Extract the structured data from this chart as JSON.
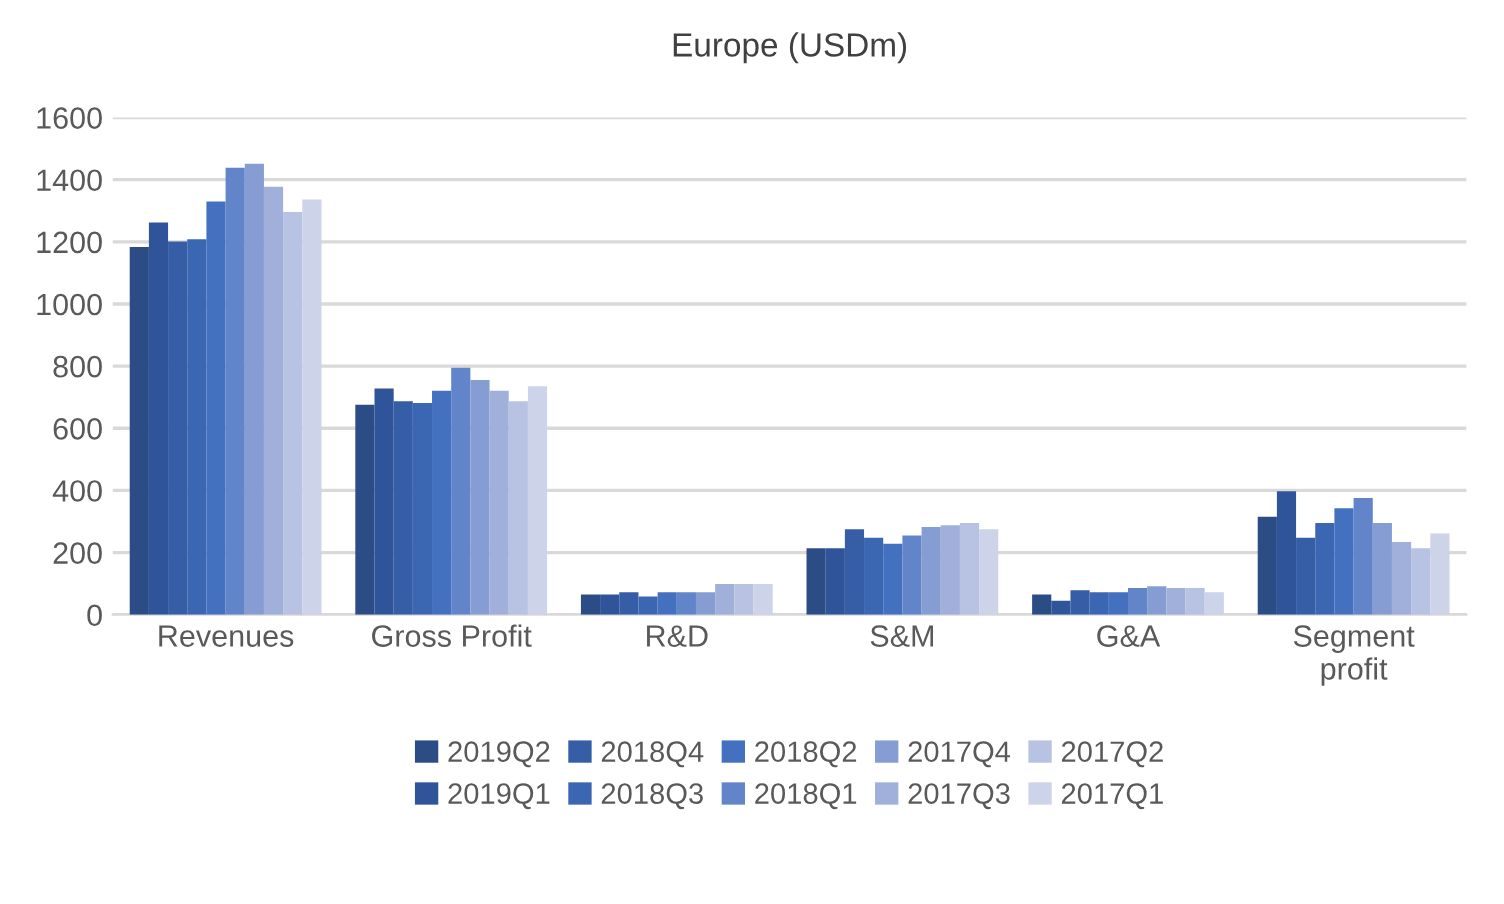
{
  "chart_data": {
    "type": "bar",
    "title": "Europe (USDm)",
    "categories": [
      "Revenues",
      "Gross Profit",
      "R&D",
      "S&M",
      "G&A",
      "Segment\nprofit"
    ],
    "ylim": [
      0,
      1600
    ],
    "yticks": [
      0,
      200,
      400,
      600,
      800,
      1000,
      1200,
      1400,
      1600
    ],
    "grid": "y",
    "legend": "bottom",
    "series": [
      {
        "name": "2019Q2",
        "color": "#2c4c86",
        "values": [
          1183,
          676,
          65,
          214,
          65,
          315
        ]
      },
      {
        "name": "2019Q1",
        "color": "#30549a",
        "values": [
          1262,
          728,
          65,
          214,
          45,
          397
        ]
      },
      {
        "name": "2018Q4",
        "color": "#365ea6",
        "values": [
          1201,
          687,
          72,
          275,
          79,
          248
        ]
      },
      {
        "name": "2018Q3",
        "color": "#3b66b2",
        "values": [
          1208,
          681,
          59,
          248,
          72,
          295
        ]
      },
      {
        "name": "2018Q2",
        "color": "#4370bf",
        "values": [
          1330,
          721,
          72,
          228,
          72,
          343
        ]
      },
      {
        "name": "2018Q1",
        "color": "#6284c9",
        "values": [
          1438,
          795,
          72,
          255,
          86,
          376
        ]
      },
      {
        "name": "2017Q4",
        "color": "#869dd3",
        "values": [
          1451,
          755,
          72,
          282,
          92,
          295
        ]
      },
      {
        "name": "2017Q3",
        "color": "#a1b0da",
        "values": [
          1377,
          721,
          99,
          288,
          86,
          234
        ]
      },
      {
        "name": "2017Q2",
        "color": "#b8c2e2",
        "values": [
          1296,
          687,
          99,
          295,
          86,
          214
        ]
      },
      {
        "name": "2017Q1",
        "color": "#cdd3e8",
        "values": [
          1336,
          735,
          99,
          275,
          72,
          261
        ]
      }
    ]
  }
}
